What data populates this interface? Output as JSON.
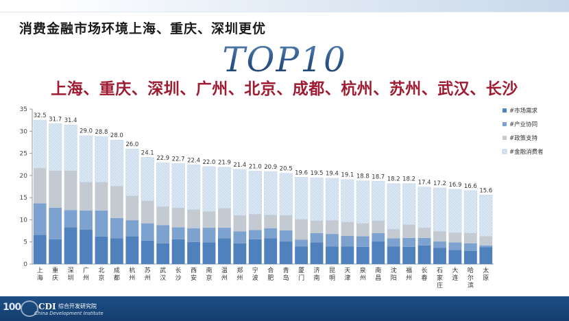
{
  "title": "消费金融市场环境上海、重庆、深圳更优",
  "heading": "TOP10",
  "top10_line": "上海、重庆、深圳、广州、北京、成都、杭州、苏州、武汉、长沙",
  "colors": {
    "market": "#4f81bd",
    "industry": "#7ea2cf",
    "policy": "#c4cad2",
    "consumer": "#d9e6f3",
    "top_strip": "#c8d8ea",
    "bottom_bar": "#1d4f86",
    "heading": "#2f5e8e",
    "cities": "#9e1b32"
  },
  "footer": {
    "logo_number": "100",
    "logo_org": "CDI",
    "logo_org_cn": "综合开发研究院",
    "logo_org_en": "China Development Institute"
  },
  "chart_data": {
    "type": "bar",
    "stacked": true,
    "categories": [
      "上海",
      "重庆",
      "深圳",
      "广州",
      "北京",
      "成都",
      "杭州",
      "苏州",
      "武汉",
      "长沙",
      "西安",
      "南京",
      "温州",
      "郑州",
      "宁波",
      "合肥",
      "青岛",
      "厦门",
      "济南",
      "昆明",
      "天津",
      "泉州",
      "南昌",
      "沈阳",
      "福州",
      "长春",
      "石家庄",
      "大连",
      "哈尔滨",
      "太原"
    ],
    "series": [
      {
        "name": "#市场需求",
        "values": [
          6.6,
          5.6,
          8.3,
          7.8,
          6.2,
          5.8,
          6.3,
          5.3,
          4.7,
          5.6,
          5.0,
          4.9,
          5.8,
          4.7,
          5.6,
          5.8,
          5.1,
          4.0,
          4.9,
          4.0,
          4.0,
          3.9,
          5.1,
          4.0,
          3.9,
          4.2,
          3.7,
          3.2,
          3.0,
          3.8
        ]
      },
      {
        "name": "#产业协同",
        "values": [
          7.1,
          7.1,
          3.9,
          4.3,
          5.9,
          4.6,
          3.6,
          3.9,
          4.1,
          2.7,
          3.1,
          3.3,
          2.4,
          2.7,
          2.1,
          2.3,
          2.5,
          1.5,
          2.1,
          2.8,
          2.4,
          2.4,
          1.9,
          1.8,
          2.0,
          1.7,
          1.4,
          1.7,
          1.7,
          0.4
        ]
      },
      {
        "name": "#政策支持",
        "values": [
          8.0,
          8.4,
          8.9,
          6.4,
          6.4,
          7.2,
          5.5,
          5.1,
          4.2,
          4.4,
          4.2,
          3.7,
          4.4,
          3.6,
          3.6,
          3.0,
          3.4,
          4.6,
          2.8,
          3.1,
          3.1,
          2.9,
          2.8,
          2.1,
          3.0,
          2.3,
          2.3,
          2.2,
          2.3,
          2.1
        ]
      },
      {
        "name": "#金融消费者",
        "values": [
          10.8,
          10.6,
          10.3,
          10.5,
          10.3,
          10.4,
          10.6,
          9.8,
          9.9,
          10.0,
          10.1,
          10.1,
          9.3,
          10.4,
          9.7,
          9.8,
          9.5,
          9.5,
          9.7,
          9.5,
          9.6,
          9.6,
          8.9,
          10.3,
          9.3,
          9.2,
          9.8,
          9.8,
          9.6,
          9.3
        ]
      }
    ],
    "totals": [
      32.5,
      31.7,
      31.4,
      29.0,
      28.8,
      28.0,
      26.0,
      24.1,
      22.9,
      22.7,
      22.4,
      22.0,
      21.9,
      21.4,
      21.0,
      20.9,
      20.5,
      19.6,
      19.5,
      19.4,
      19.1,
      18.8,
      18.7,
      18.2,
      18.2,
      17.4,
      17.2,
      16.9,
      16.6,
      15.6
    ],
    "total_labels": [
      "32.5",
      "31.7",
      "31.4",
      "29.0",
      "28.8",
      "28.0",
      "26.0",
      "24.1",
      "22.9",
      "22.7",
      "22.4",
      "22.0",
      "21.9",
      "21.4",
      "21.0",
      "20.9",
      "20.5",
      "19.6",
      "19.5",
      "19.4",
      "19.1",
      "18.8",
      "18.7",
      "18.2",
      "18.2",
      "17.4",
      "17.2",
      "16.9",
      "16.6",
      "15.6"
    ],
    "yticks": [
      0,
      5,
      10,
      15,
      20,
      25,
      30,
      35
    ],
    "ytick_labels": [
      "0",
      "5",
      "10",
      "15",
      "20",
      "25",
      "30",
      "35"
    ],
    "ylim": [
      0,
      35
    ],
    "legend_position": "right",
    "grid": false
  }
}
